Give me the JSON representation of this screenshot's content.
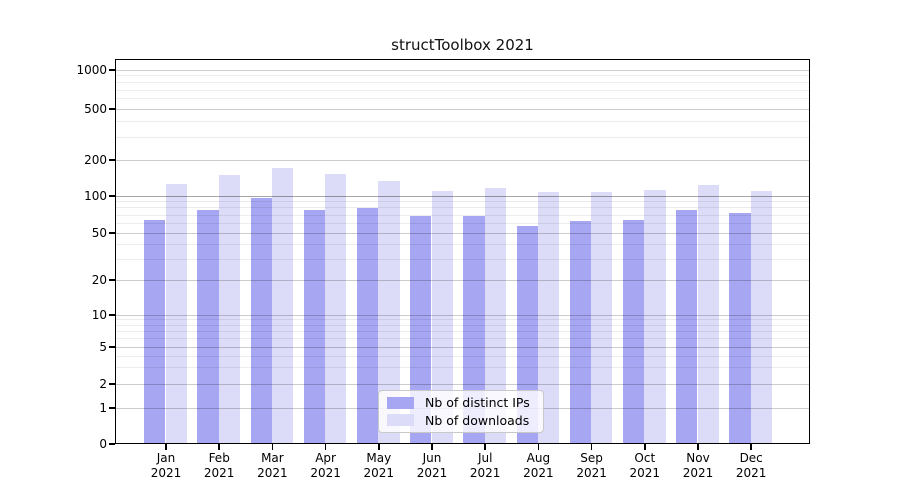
{
  "chart_data": {
    "type": "bar",
    "title": "structToolbox 2021",
    "year": "2021",
    "categories": [
      "Jan",
      "Feb",
      "Mar",
      "Apr",
      "May",
      "Jun",
      "Jul",
      "Aug",
      "Sep",
      "Oct",
      "Nov",
      "Dec"
    ],
    "series": [
      {
        "name": "Nb of distinct IPs",
        "color": "#a6a6f2",
        "values": [
          65,
          78,
          98,
          77,
          81,
          70,
          70,
          58,
          63,
          65,
          78,
          74
        ]
      },
      {
        "name": "Nb of downloads",
        "color": "#dcdcf8",
        "values": [
          128,
          152,
          172,
          155,
          134,
          112,
          117,
          110,
          110,
          113,
          125,
          111
        ]
      }
    ],
    "yscale": "symlog",
    "ylim": [
      0,
      1000
    ],
    "yticks": [
      0,
      1,
      2,
      5,
      10,
      20,
      50,
      100,
      200,
      500,
      1000
    ],
    "grid": true,
    "legend_position": "lower center"
  },
  "colors": {
    "background": "#ffffff",
    "axis": "#000000",
    "text": "#000000",
    "major_grid": "rgba(0,0,0,0.20)",
    "minor_grid": "rgba(0,0,0,0.075)",
    "emphasis_grid": "rgba(0,0,0,0.35)"
  }
}
